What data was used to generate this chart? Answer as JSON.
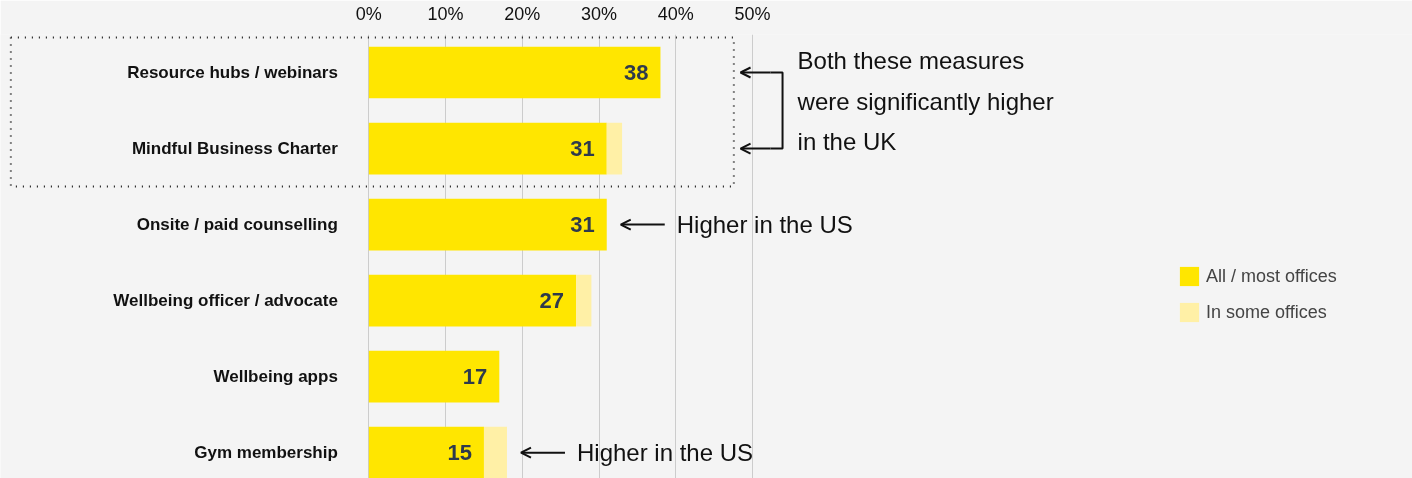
{
  "chart_data": {
    "type": "bar",
    "orientation": "horizontal",
    "stacked": true,
    "categories": [
      "Resource hubs / webinars",
      "Mindful Business Charter",
      "Onsite / paid counselling",
      "Wellbeing officer / advocate",
      "Wellbeing apps",
      "Gym membership"
    ],
    "series": [
      {
        "name": "All / most offices",
        "color": "#ffe600",
        "values": [
          38,
          31,
          31,
          27,
          17,
          15
        ],
        "value_labels": [
          "38",
          "31",
          "31",
          "27",
          "17",
          "15"
        ]
      },
      {
        "name": "In some offices",
        "color": "#fff0a6",
        "values": [
          0,
          2,
          0,
          2,
          0,
          3
        ]
      }
    ],
    "xlim": [
      -48,
      136
    ],
    "xticks": [
      {
        "value": 0,
        "label": "0%"
      },
      {
        "value": 10,
        "label": "10%"
      },
      {
        "value": 20,
        "label": "20%"
      },
      {
        "value": 30,
        "label": "30%"
      },
      {
        "value": 40,
        "label": "40%"
      },
      {
        "value": 50,
        "label": "50%"
      }
    ],
    "grid": "x",
    "legend": "right",
    "annotations": [
      "Both these measures\nwere significantly higher\nin the UK",
      {
        "text": "Higher in the US",
        "x": 31,
        "y": "Onsite / paid counselling"
      },
      {
        "text": "Higher in the US",
        "x": 18,
        "y": "Gym membership"
      }
    ]
  }
}
